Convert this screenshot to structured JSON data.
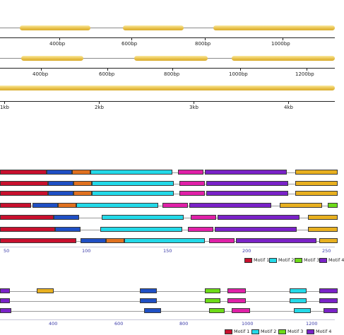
{
  "colors": {
    "gene": "#e6bd4a",
    "motif_1": "#c8102e",
    "motif_2": "#23d9e8",
    "motif_3": "#6ddb18",
    "motif_4": "#7a22c8",
    "motif_blue": "#1f4fc4",
    "motif_orange": "#e0711f",
    "motif_magenta": "#e020a8",
    "motif_gold": "#e8b020"
  },
  "panels": {
    "gene_panel_1": {
      "ticks": [
        "400bp",
        "600bp",
        "800bp",
        "1000bp"
      ]
    },
    "gene_panel_2": {
      "ticks": [
        "400bp",
        "600bp",
        "800bp",
        "1000bp",
        "1200bp"
      ]
    },
    "gene_panel_3": {
      "ticks": [
        "1kb",
        "2kb",
        "3kb",
        "4kb"
      ]
    },
    "motif_panel_1": {
      "rows": 7,
      "ticks": [
        "50",
        "100",
        "150",
        "200",
        "250"
      ],
      "legend": [
        "Motif 1",
        "Motif 2",
        "Motif 3",
        "Motif 4"
      ]
    },
    "motif_panel_2": {
      "rows": 3,
      "ticks": [
        "400",
        "600",
        "800",
        "1000",
        "1200"
      ],
      "legend": [
        "Motif 1",
        "Motif 2",
        "Motif 3",
        "Motif 4"
      ]
    }
  }
}
